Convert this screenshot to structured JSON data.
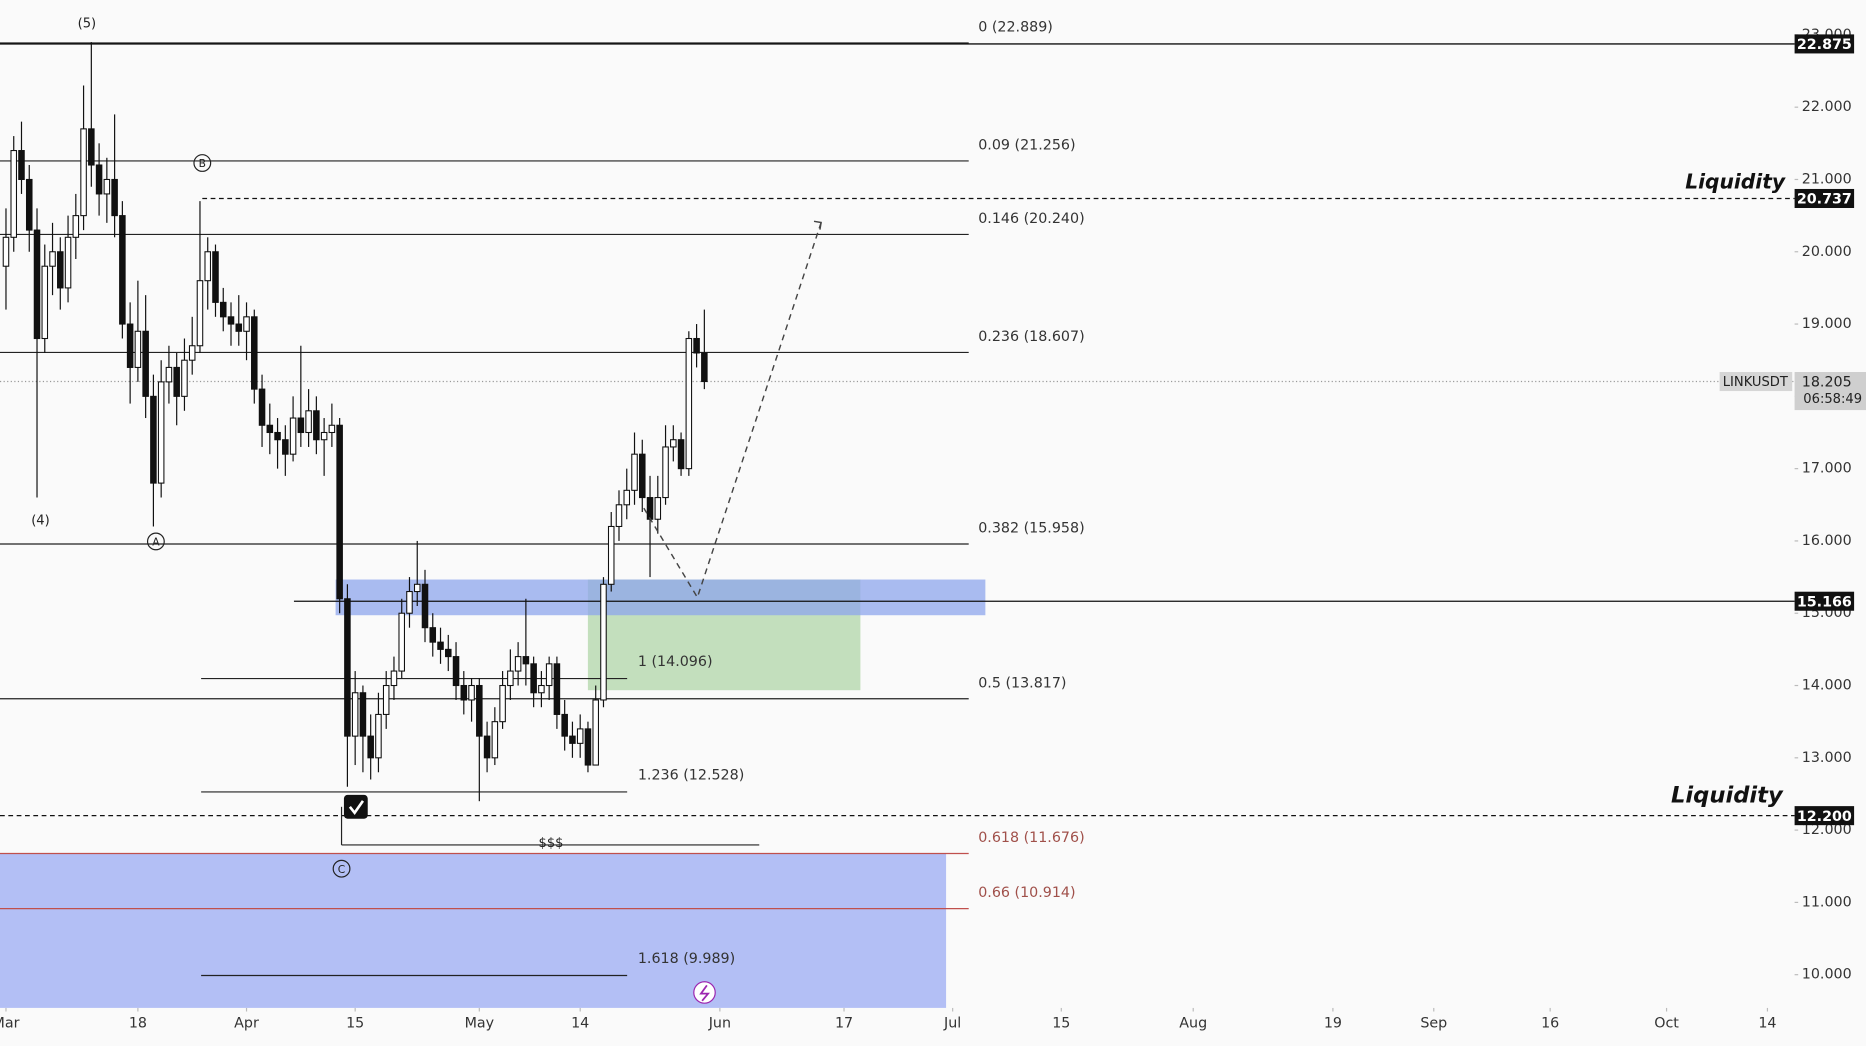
{
  "chart_data": {
    "type": "candlestick",
    "symbol": "LINKUSDT",
    "countdown": "06:58:49",
    "x": [
      0,
      1,
      2,
      3,
      4,
      5,
      6,
      7,
      8,
      9,
      10,
      11,
      12,
      13,
      14,
      15,
      16,
      17,
      18,
      19,
      20,
      21,
      22,
      23,
      24,
      25,
      26,
      27,
      28,
      29,
      30,
      31,
      32,
      33,
      34,
      35,
      36,
      37,
      38,
      39,
      40,
      41,
      42,
      43,
      44,
      45,
      46,
      47,
      48,
      49,
      50,
      51,
      52,
      53,
      54,
      55,
      56,
      57,
      58,
      59,
      60,
      61,
      62,
      63,
      64,
      65,
      66,
      67,
      68,
      69,
      70,
      71,
      72,
      73,
      74,
      75,
      76,
      77,
      78,
      79,
      80,
      81,
      82,
      83,
      84,
      85,
      86,
      87,
      88,
      89,
      90
    ],
    "open": [
      19.8,
      20.2,
      21.4,
      21.0,
      20.3,
      18.8,
      19.8,
      20.0,
      19.5,
      20.2,
      20.5,
      21.7,
      21.2,
      20.8,
      21.0,
      20.5,
      19.0,
      18.4,
      18.9,
      18.0,
      16.8,
      18.2,
      18.4,
      18.0,
      18.5,
      18.7,
      19.6,
      20.0,
      19.3,
      19.1,
      19.0,
      18.9,
      19.1,
      18.1,
      17.6,
      17.5,
      17.4,
      17.2,
      17.7,
      17.5,
      17.8,
      17.4,
      17.5,
      17.6,
      15.2,
      13.3,
      13.9,
      13.3,
      13.0,
      13.6,
      14.0,
      14.2,
      15.0,
      15.3,
      15.4,
      14.8,
      14.6,
      14.5,
      14.4,
      14.0,
      13.8,
      14.0,
      13.3,
      13.0,
      13.5,
      14.0,
      14.2,
      14.4,
      14.3,
      13.9,
      14.0,
      14.3,
      13.6,
      13.3,
      13.2,
      13.4,
      12.9,
      13.8,
      15.4,
      16.2,
      16.5,
      16.7,
      17.2,
      16.6,
      16.3,
      16.6,
      17.3,
      17.4,
      17.0,
      18.8,
      18.6
    ],
    "high": [
      20.6,
      21.6,
      21.8,
      21.2,
      20.6,
      20.1,
      20.4,
      20.2,
      20.5,
      20.8,
      22.3,
      22.9,
      21.5,
      21.3,
      21.9,
      20.7,
      19.3,
      19.6,
      19.4,
      18.3,
      18.5,
      18.7,
      18.6,
      18.8,
      19.1,
      20.7,
      20.2,
      20.1,
      19.5,
      19.3,
      19.4,
      19.3,
      19.2,
      18.3,
      17.9,
      17.7,
      17.6,
      18.0,
      18.7,
      18.1,
      18.0,
      17.7,
      17.9,
      17.7,
      15.4,
      14.2,
      14.0,
      13.6,
      13.9,
      14.2,
      14.4,
      15.2,
      15.5,
      16.0,
      15.6,
      15.0,
      14.8,
      14.7,
      14.6,
      14.2,
      14.1,
      14.1,
      13.5,
      13.7,
      14.2,
      14.5,
      14.6,
      15.2,
      14.4,
      14.2,
      14.4,
      14.4,
      13.8,
      13.5,
      13.6,
      13.5,
      14.0,
      15.5,
      16.4,
      16.7,
      17.0,
      17.5,
      17.4,
      16.9,
      16.9,
      17.6,
      17.6,
      17.5,
      18.9,
      19.0,
      19.2
    ],
    "low": [
      19.2,
      20.0,
      20.8,
      20.0,
      16.6,
      18.6,
      19.4,
      19.2,
      19.3,
      19.9,
      20.3,
      20.9,
      20.5,
      20.4,
      20.2,
      18.8,
      17.9,
      18.2,
      17.7,
      16.2,
      16.6,
      17.9,
      17.6,
      17.8,
      18.3,
      18.6,
      19.2,
      19.1,
      18.9,
      18.7,
      18.7,
      18.5,
      17.9,
      17.3,
      17.2,
      17.0,
      16.9,
      17.1,
      17.3,
      17.3,
      17.2,
      16.9,
      17.3,
      15.0,
      12.6,
      12.9,
      12.8,
      12.7,
      12.8,
      13.4,
      13.8,
      14.1,
      14.8,
      15.1,
      14.6,
      14.4,
      14.3,
      14.2,
      13.8,
      13.6,
      13.5,
      12.4,
      12.8,
      12.9,
      13.4,
      13.8,
      14.0,
      14.0,
      13.7,
      13.7,
      13.8,
      13.4,
      13.1,
      13.0,
      13.0,
      12.8,
      12.9,
      13.7,
      15.3,
      16.0,
      16.3,
      16.5,
      16.4,
      15.5,
      16.1,
      16.5,
      17.1,
      16.9,
      16.9,
      18.4,
      18.1
    ],
    "close": [
      20.2,
      21.4,
      21.0,
      20.3,
      18.8,
      19.8,
      20.0,
      19.5,
      20.2,
      20.5,
      21.7,
      21.2,
      20.8,
      21.0,
      20.5,
      19.0,
      18.4,
      18.9,
      18.0,
      16.8,
      18.2,
      18.4,
      18.0,
      18.5,
      18.7,
      19.6,
      20.0,
      19.3,
      19.1,
      19.0,
      18.9,
      19.1,
      18.1,
      17.6,
      17.5,
      17.4,
      17.2,
      17.7,
      17.5,
      17.8,
      17.4,
      17.5,
      17.6,
      15.2,
      13.3,
      13.9,
      13.3,
      13.0,
      13.6,
      14.0,
      14.2,
      15.0,
      15.3,
      15.4,
      14.8,
      14.6,
      14.5,
      14.4,
      14.0,
      13.8,
      14.0,
      13.3,
      13.0,
      13.5,
      14.0,
      14.2,
      14.4,
      14.3,
      13.9,
      14.0,
      14.3,
      13.6,
      13.3,
      13.2,
      13.4,
      12.9,
      13.8,
      15.4,
      16.2,
      16.5,
      16.7,
      17.2,
      16.6,
      16.3,
      16.6,
      17.3,
      17.4,
      17.0,
      18.8,
      18.6,
      18.205
    ],
    "xlim": [
      -0.77,
      230.5
    ],
    "xticks": [
      {
        "value": 0,
        "label": "Mar"
      },
      {
        "value": 17,
        "label": "18"
      },
      {
        "value": 31,
        "label": "Apr"
      },
      {
        "value": 45,
        "label": "15"
      },
      {
        "value": 61,
        "label": "May"
      },
      {
        "value": 74,
        "label": "14"
      },
      {
        "value": 92,
        "label": "Jun"
      },
      {
        "value": 108,
        "label": "17"
      },
      {
        "value": 122,
        "label": "Jul"
      },
      {
        "value": 136,
        "label": "15"
      },
      {
        "value": 153,
        "label": "Aug"
      },
      {
        "value": 171,
        "label": "19"
      },
      {
        "value": 184,
        "label": "Sep"
      },
      {
        "value": 199,
        "label": "16"
      },
      {
        "value": 214,
        "label": "Oct"
      },
      {
        "value": 227,
        "label": "14"
      }
    ],
    "ylim": [
      9.54,
      23.45
    ],
    "yticks": [
      {
        "value": 10,
        "label": "10.000"
      },
      {
        "value": 11,
        "label": "11.000"
      },
      {
        "value": 12,
        "label": "12.000"
      },
      {
        "value": 13,
        "label": "13.000"
      },
      {
        "value": 14,
        "label": "14.000"
      },
      {
        "value": 15,
        "label": "15.000"
      },
      {
        "value": 16,
        "label": "16.000"
      },
      {
        "value": 17,
        "label": "17.000"
      },
      {
        "value": 18,
        "label": "18.000"
      },
      {
        "value": 19,
        "label": "19.000"
      },
      {
        "value": 20,
        "label": "20.000"
      },
      {
        "value": 21,
        "label": "21.000"
      },
      {
        "value": 22,
        "label": "22.000"
      },
      {
        "value": 23,
        "label": "23.000"
      }
    ],
    "fib_levels": [
      {
        "value": 22.889,
        "label": "0 (22.889)"
      },
      {
        "value": 21.256,
        "label": "0.09 (21.256)"
      },
      {
        "value": 20.24,
        "label": "0.146 (20.240)"
      },
      {
        "value": 18.607,
        "label": "0.236 (18.607)"
      },
      {
        "value": 15.958,
        "label": "0.382 (15.958)"
      },
      {
        "value": 13.817,
        "label": "0.5 (13.817)"
      },
      {
        "value": 11.676,
        "label": "0.618 (11.676)"
      },
      {
        "value": 10.914,
        "label": "0.66 (10.914)"
      }
    ],
    "extension_levels": [
      {
        "value": 14.096,
        "label": "1 (14.096)"
      },
      {
        "value": 12.528,
        "label": "1.236 (12.528)"
      },
      {
        "value": 9.989,
        "label": "1.618 (9.989)"
      }
    ],
    "price_lines": [
      {
        "value": 22.875,
        "label": "22.875"
      },
      {
        "value": 20.737,
        "label": "20.737"
      },
      {
        "value": 15.166,
        "label": "15.166"
      },
      {
        "value": 12.2,
        "label": "12.200"
      }
    ],
    "liquidity_labels": [
      "Liquidity",
      "Liquidity"
    ],
    "wave_labels": [
      "(5)",
      "(4)",
      "A",
      "B",
      "C"
    ],
    "target_label": "$$$"
  }
}
